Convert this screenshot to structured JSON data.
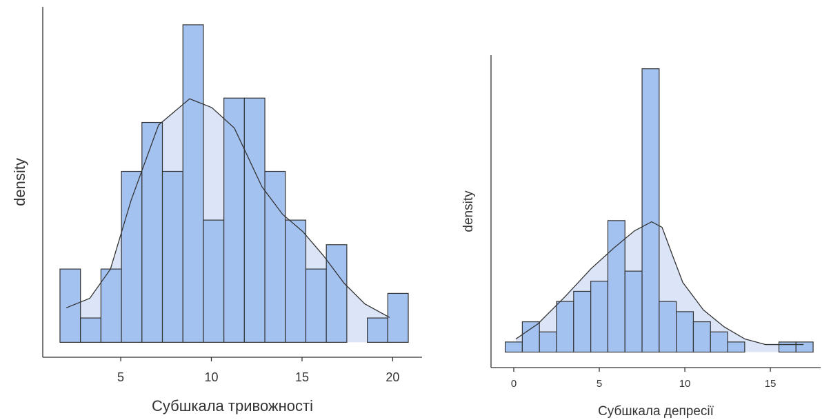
{
  "chart_data": [
    {
      "type": "histogram",
      "xlabel": "Субшкала тривожності",
      "ylabel": "density",
      "bins": [
        1.65,
        2.78,
        3.91,
        5.04,
        6.17,
        7.3,
        8.43,
        9.56,
        10.69,
        11.82,
        12.95,
        14.08,
        15.21,
        16.34,
        17.47,
        18.6,
        19.73,
        20.86
      ],
      "values": [
        0.0295,
        0.0098,
        0.0295,
        0.0688,
        0.0885,
        0.0688,
        0.1278,
        0.0492,
        0.0983,
        0.0983,
        0.0688,
        0.0492,
        0.0295,
        0.0393,
        0,
        0.0098,
        0.0197
      ],
      "density": {
        "x": [
          2.0,
          3.29,
          4.43,
          5.57,
          7.09,
          8.8,
          10.02,
          11.27,
          12.79,
          13.93,
          15.04,
          16.18,
          17.32,
          18.46,
          19.83
        ],
        "y": [
          0.0139,
          0.0177,
          0.0294,
          0.0571,
          0.0875,
          0.098,
          0.0945,
          0.0862,
          0.0626,
          0.0515,
          0.0446,
          0.0349,
          0.0238,
          0.0155,
          0.01
        ]
      },
      "color": "#a4c2f0",
      "density_color": "#dbe5f7",
      "xlim": [
        0.7,
        21.62
      ],
      "xticks": [
        5,
        10,
        15,
        20
      ],
      "ylim": [
        -0.006,
        0.135
      ]
    },
    {
      "type": "histogram",
      "xlabel": "Субшкала депресії",
      "ylabel": "density",
      "bins": [
        -0.5,
        0.5,
        1.5,
        2.5,
        3.5,
        4.5,
        5.5,
        6.5,
        7.5,
        8.5,
        9.5,
        10.5,
        11.5,
        12.5,
        13.5,
        14.5,
        15.5,
        16.5,
        17.5
      ],
      "values": [
        0.0111,
        0.0333,
        0.0222,
        0.0556,
        0.0667,
        0.0778,
        0.1444,
        0.0889,
        0.3111,
        0.0556,
        0.0444,
        0.0333,
        0.0222,
        0.0111,
        0,
        0,
        0.0111,
        0.0111
      ],
      "density": {
        "x": [
          0.12,
          1.41,
          3.02,
          4.52,
          5.85,
          7.06,
          8.06,
          8.67,
          9.27,
          9.88,
          11.09,
          12.3,
          13.51,
          14.72,
          15.93,
          16.94
        ],
        "y": [
          0.0144,
          0.031,
          0.0613,
          0.0916,
          0.1143,
          0.1332,
          0.1431,
          0.137,
          0.1067,
          0.0765,
          0.0462,
          0.0277,
          0.0144,
          0.0083,
          0.0083,
          0.0083
        ]
      },
      "color": "#a4c2f0",
      "density_color": "#dbe5f7",
      "xlim": [
        -1.33,
        17.94
      ],
      "xticks": [
        0,
        5,
        10,
        15
      ],
      "ylim": [
        -0.017,
        0.326
      ]
    }
  ]
}
